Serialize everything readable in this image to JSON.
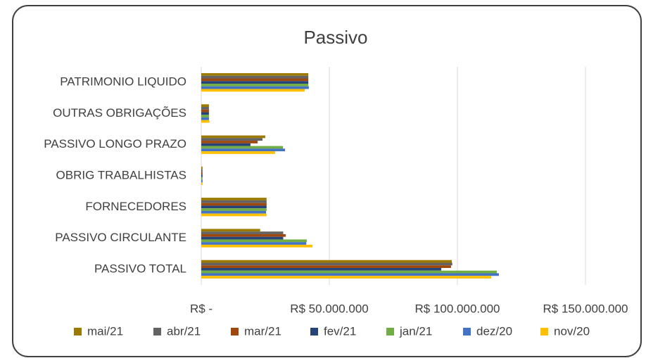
{
  "chart_data": {
    "type": "hbar",
    "title": "Passivo",
    "categories": [
      "PATRIMONIO LIQUIDO",
      "OUTRAS OBRIGAÇÕES",
      "PASSIVO LONGO PRAZO",
      "OBRIG TRABALHISTAS",
      "FORNECEDORES",
      "PASSIVO CIRCULANTE",
      "PASSIVO TOTAL"
    ],
    "series": [
      {
        "name": "mai/21",
        "color": "#9c7a00",
        "values": [
          41800000,
          3000000,
          25000000,
          500000,
          25500000,
          23000000,
          97800000
        ]
      },
      {
        "name": "abr/21",
        "color": "#636363",
        "values": [
          41800000,
          3000000,
          23900000,
          500000,
          25500000,
          32000000,
          98000000
        ]
      },
      {
        "name": "mar/21",
        "color": "#9e480e",
        "values": [
          41800000,
          3000000,
          22000000,
          500000,
          25500000,
          33000000,
          97500000
        ]
      },
      {
        "name": "fev/21",
        "color": "#264478",
        "values": [
          41800000,
          3000000,
          19200000,
          500000,
          25500000,
          32000000,
          93700000
        ]
      },
      {
        "name": "jan/21",
        "color": "#70ad47",
        "values": [
          41800000,
          3000000,
          31900000,
          500000,
          25500000,
          41200000,
          115400000
        ]
      },
      {
        "name": "dez/20",
        "color": "#4472c4",
        "values": [
          42000000,
          3000000,
          32700000,
          500000,
          25300000,
          41000000,
          116200000
        ]
      },
      {
        "name": "nov/20",
        "color": "#ffc000",
        "values": [
          40400000,
          3200000,
          28800000,
          500000,
          25500000,
          43400000,
          113200000
        ]
      }
    ],
    "xlim": [
      0,
      150000000
    ],
    "xticks": [
      {
        "value": 0,
        "label": "R$ -"
      },
      {
        "value": 50000000,
        "label": "R$ 50.000.000"
      },
      {
        "value": 100000000,
        "label": "R$ 100.000.000"
      },
      {
        "value": 150000000,
        "label": "R$ 150.000.000"
      }
    ],
    "grid": true,
    "legend": "bottom"
  }
}
